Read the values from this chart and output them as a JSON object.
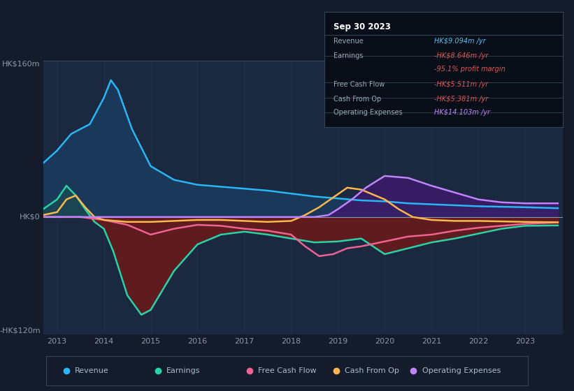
{
  "bg_color": "#141c2b",
  "chart_area_color": "#1a2840",
  "y_label_top": "HK$160m",
  "y_label_zero": "HK$0",
  "y_label_bottom": "-HK$120m",
  "y_max": 160,
  "y_min": -120,
  "x_years": [
    2013,
    2014,
    2015,
    2016,
    2017,
    2018,
    2019,
    2020,
    2021,
    2022,
    2023
  ],
  "info_box": {
    "date": "Sep 30 2023",
    "rows": [
      {
        "label": "Revenue",
        "value": "HK$9.094m /yr",
        "value_color": "#4fc3f7"
      },
      {
        "label": "Earnings",
        "value": "-HK$8.646m /yr",
        "value_color": "#e05555"
      },
      {
        "label": "",
        "value": "-95.1% profit margin",
        "value_color": "#e05555"
      },
      {
        "label": "Free Cash Flow",
        "value": "-HK$5.511m /yr",
        "value_color": "#e05555"
      },
      {
        "label": "Cash From Op",
        "value": "-HK$5.381m /yr",
        "value_color": "#e05555"
      },
      {
        "label": "Operating Expenses",
        "value": "HK$14.103m /yr",
        "value_color": "#c084fc"
      }
    ]
  },
  "revenue": {
    "color": "#29b6f6",
    "fill_pos_color": "#1a3a5c",
    "label": "Revenue",
    "x": [
      2012.7,
      2013.0,
      2013.3,
      2013.7,
      2014.0,
      2014.15,
      2014.3,
      2014.6,
      2015.0,
      2015.5,
      2016.0,
      2016.5,
      2017.0,
      2017.5,
      2018.0,
      2018.5,
      2019.0,
      2019.5,
      2020.0,
      2020.5,
      2021.0,
      2021.5,
      2022.0,
      2022.5,
      2023.0,
      2023.7
    ],
    "y": [
      55,
      68,
      85,
      95,
      122,
      140,
      130,
      90,
      52,
      38,
      33,
      31,
      29,
      27,
      24,
      21,
      19,
      17,
      16,
      14,
      13,
      12,
      11,
      10.5,
      10,
      9
    ]
  },
  "earnings": {
    "color": "#26d4a8",
    "fill_neg_color": "#6b1a1a",
    "fill_pos_color": "#1a5050",
    "label": "Earnings",
    "x": [
      2012.7,
      2013.0,
      2013.2,
      2013.4,
      2013.6,
      2013.8,
      2014.0,
      2014.2,
      2014.5,
      2014.8,
      2015.0,
      2015.5,
      2016.0,
      2016.5,
      2017.0,
      2017.5,
      2018.0,
      2018.5,
      2019.0,
      2019.5,
      2020.0,
      2020.5,
      2021.0,
      2021.5,
      2022.0,
      2022.5,
      2023.0,
      2023.7
    ],
    "y": [
      8,
      18,
      32,
      22,
      8,
      -5,
      -12,
      -35,
      -80,
      -100,
      -95,
      -55,
      -28,
      -18,
      -15,
      -18,
      -22,
      -26,
      -25,
      -22,
      -38,
      -32,
      -26,
      -22,
      -17,
      -12,
      -9,
      -8.6
    ]
  },
  "free_cash_flow": {
    "color": "#f06292",
    "label": "Free Cash Flow",
    "x": [
      2012.7,
      2013.0,
      2013.5,
      2014.0,
      2014.5,
      2015.0,
      2015.5,
      2016.0,
      2016.5,
      2017.0,
      2017.5,
      2018.0,
      2018.3,
      2018.6,
      2018.9,
      2019.2,
      2019.5,
      2020.0,
      2020.5,
      2021.0,
      2021.5,
      2022.0,
      2022.5,
      2023.0,
      2023.7
    ],
    "y": [
      0,
      0,
      0,
      -3,
      -8,
      -18,
      -12,
      -8,
      -9,
      -12,
      -14,
      -18,
      -30,
      -40,
      -38,
      -32,
      -30,
      -25,
      -20,
      -18,
      -14,
      -11,
      -9,
      -7,
      -5.5
    ]
  },
  "cash_from_op": {
    "color": "#ffb74d",
    "label": "Cash From Op",
    "x": [
      2012.7,
      2013.0,
      2013.2,
      2013.4,
      2013.6,
      2013.8,
      2014.0,
      2014.5,
      2015.0,
      2015.5,
      2016.0,
      2016.5,
      2017.0,
      2017.5,
      2018.0,
      2018.3,
      2018.6,
      2018.9,
      2019.2,
      2019.5,
      2020.0,
      2020.3,
      2020.6,
      2021.0,
      2021.5,
      2022.0,
      2022.5,
      2023.0,
      2023.7
    ],
    "y": [
      2,
      5,
      18,
      22,
      10,
      0,
      -3,
      -5,
      -5,
      -4,
      -3,
      -3,
      -4,
      -5,
      -4,
      2,
      10,
      20,
      30,
      28,
      18,
      8,
      0,
      -3,
      -4,
      -4,
      -4.5,
      -5,
      -5.4
    ]
  },
  "operating_expenses": {
    "color": "#c084fc",
    "fill_pos_color": "#3d1a6a",
    "label": "Operating Expenses",
    "x": [
      2012.7,
      2013.0,
      2013.5,
      2014.0,
      2014.5,
      2015.0,
      2015.5,
      2016.0,
      2016.5,
      2017.0,
      2017.5,
      2018.0,
      2018.5,
      2018.8,
      2019.0,
      2019.3,
      2019.6,
      2020.0,
      2020.5,
      2021.0,
      2021.5,
      2022.0,
      2022.5,
      2023.0,
      2023.7
    ],
    "y": [
      0,
      0,
      0,
      0,
      0,
      0,
      0,
      0,
      0,
      0,
      0,
      0,
      0,
      2,
      8,
      18,
      30,
      42,
      40,
      32,
      25,
      18,
      15,
      14,
      14
    ]
  },
  "legend_items": [
    {
      "label": "Revenue",
      "color": "#29b6f6"
    },
    {
      "label": "Earnings",
      "color": "#26d4a8"
    },
    {
      "label": "Free Cash Flow",
      "color": "#f06292"
    },
    {
      "label": "Cash From Op",
      "color": "#ffb74d"
    },
    {
      "label": "Operating Expenses",
      "color": "#c084fc"
    }
  ],
  "x_min": 2012.7,
  "x_max": 2023.8
}
